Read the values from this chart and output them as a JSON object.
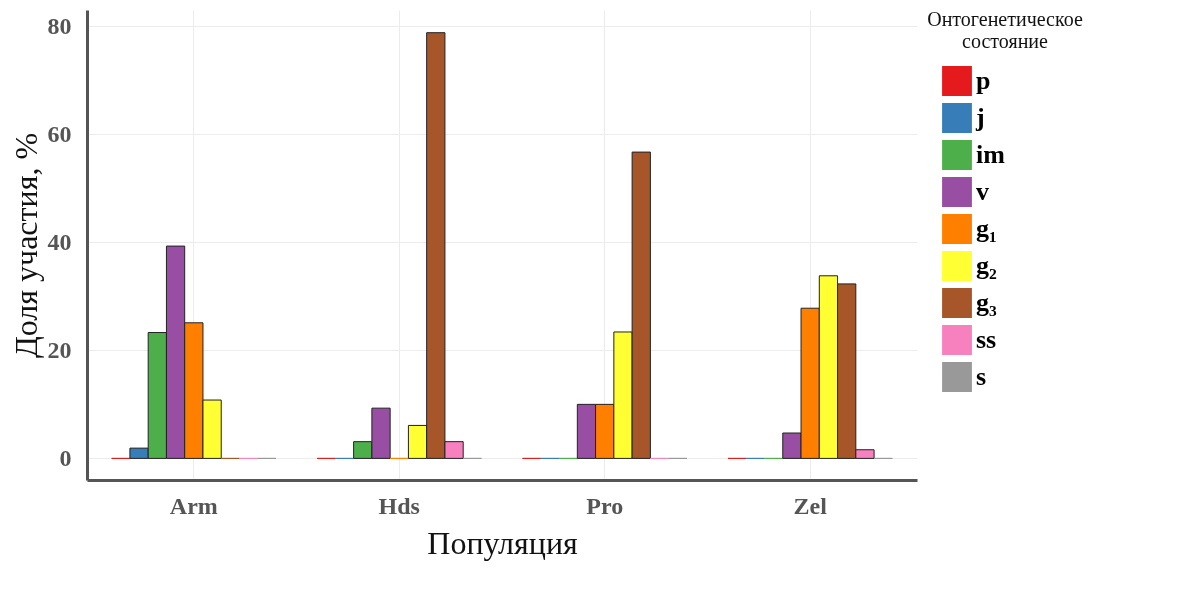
{
  "chart_data": {
    "type": "bar",
    "xlabel": "Популяция",
    "ylabel": "Доля участия, %",
    "legend_title": "Онтогенетическое состояние",
    "categories": [
      "Arm",
      "Hds",
      "Pro",
      "Zel"
    ],
    "series": [
      {
        "name": "p",
        "color": "#e41a1c",
        "values": [
          0,
          0,
          0,
          0
        ]
      },
      {
        "name": "j",
        "color": "#377eb8",
        "values": [
          1.9,
          0,
          0,
          0
        ]
      },
      {
        "name": "im",
        "color": "#4daf4a",
        "values": [
          23.3,
          3.1,
          0,
          0
        ]
      },
      {
        "name": "v",
        "color": "#984ea3",
        "values": [
          39.3,
          9.3,
          10,
          4.7
        ]
      },
      {
        "name": "g₁",
        "color": "#ff7f00",
        "values": [
          25.1,
          0,
          10,
          27.8
        ]
      },
      {
        "name": "g₂",
        "color": "#ffff33",
        "values": [
          10.8,
          6.1,
          23.4,
          33.8
        ]
      },
      {
        "name": "g₃",
        "color": "#a65628",
        "values": [
          0,
          78.8,
          56.7,
          32.3
        ]
      },
      {
        "name": "ss",
        "color": "#f781bf",
        "values": [
          0,
          3.1,
          0,
          1.6
        ]
      },
      {
        "name": "s",
        "color": "#999999",
        "values": [
          0,
          0,
          0,
          0
        ]
      }
    ],
    "ylim": [
      -4,
      83
    ],
    "yticks": [
      0,
      20,
      40,
      60,
      80
    ],
    "grid": true,
    "legend": "right"
  }
}
